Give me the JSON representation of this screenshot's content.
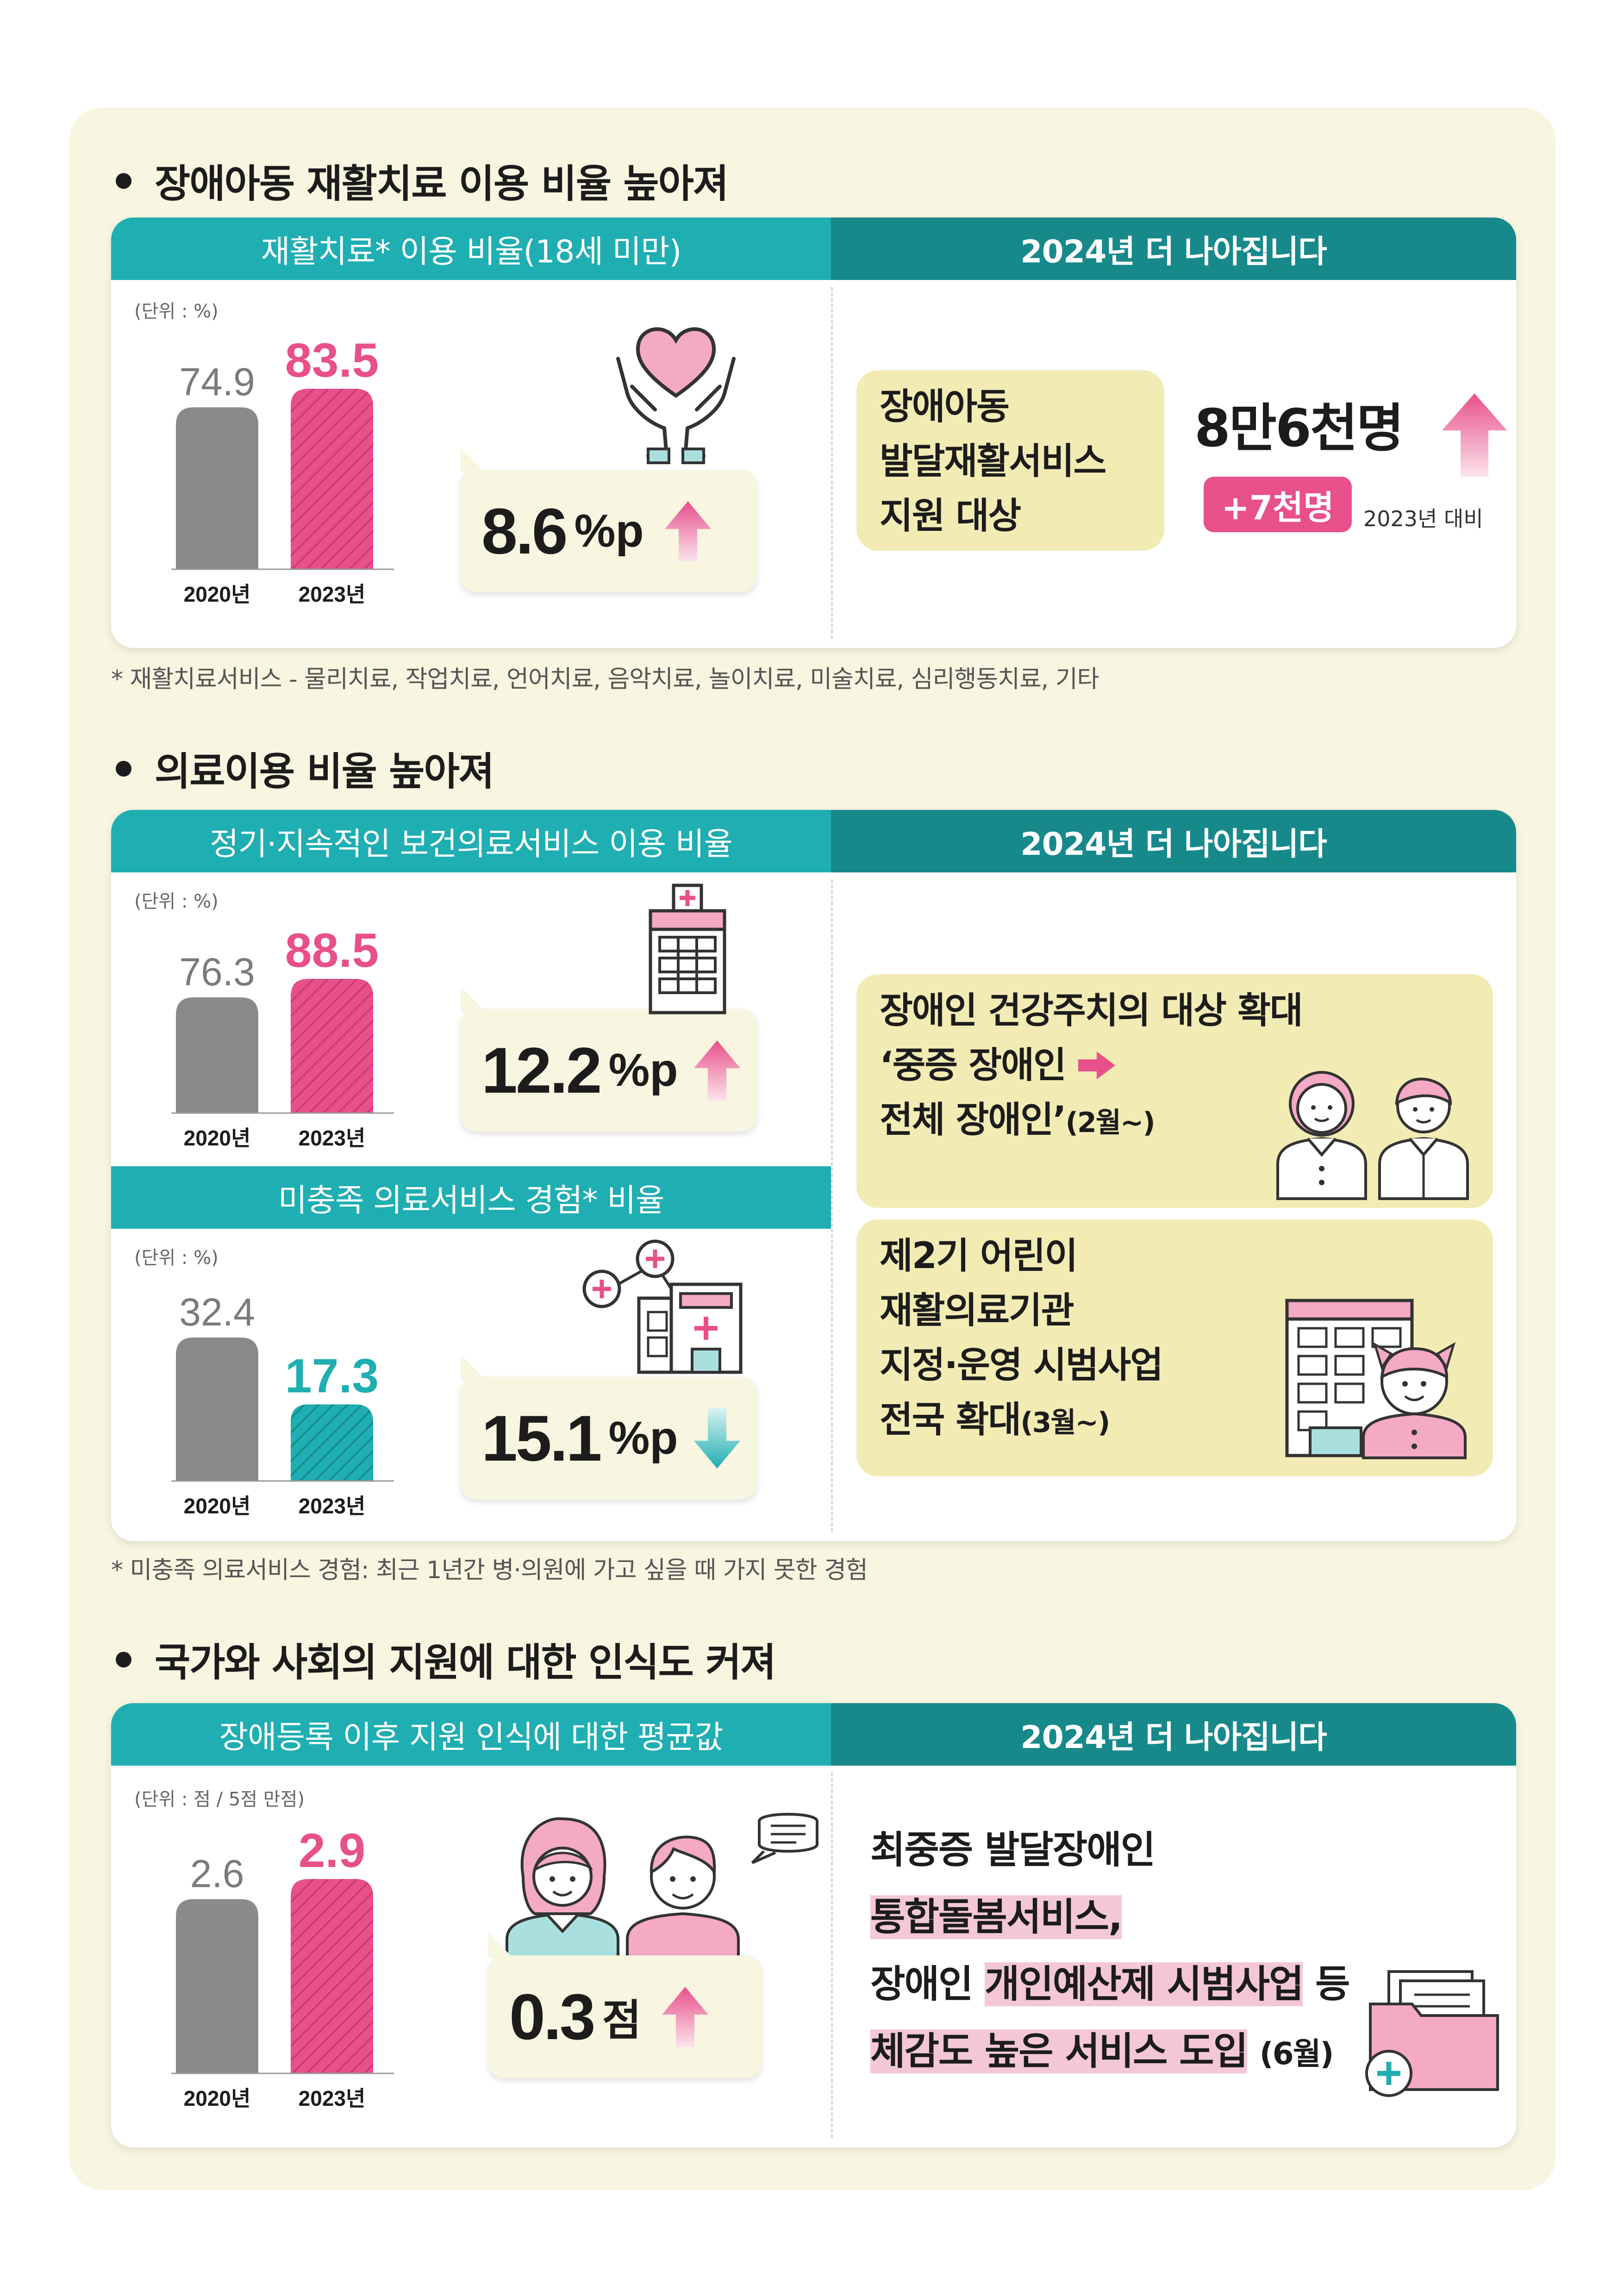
{
  "sections": [
    {
      "title": "장애아동 재활치료 이용 비율 높아져",
      "left_header": "재활치료* 이용 비율(18세 미만)",
      "right_header": "2024년 더 나아집니다",
      "unit": "(단위 : %)",
      "change_value": "8.6",
      "change_unit": "%p",
      "right_box_text": [
        "장애아동",
        "발달재활서비스",
        "지원 대상"
      ],
      "big_stat": "8만6천명",
      "badge": "+7천명",
      "compare_note": "2023년 대비",
      "footnote": "* 재활치료서비스 - 물리치료, 작업치료, 언어치료, 음악치료, 놀이치료, 미술치료, 심리행동치료, 기타"
    },
    {
      "title": "의료이용 비율 높아져",
      "left_header": "정기·지속적인 보건의료서비스 이용 비율",
      "right_header": "2024년 더 나아집니다",
      "unit": "(단위 : %)",
      "change_value": "12.2",
      "change_unit": "%p",
      "sub_header": "미충족 의료서비스 경험* 비율",
      "sub_unit": "(단위 : %)",
      "sub_change_value": "15.1",
      "sub_change_unit": "%p",
      "box1_lines": [
        "장애인 건강주치의 대상 확대",
        "‘중증 장애인",
        "전체 장애인’",
        "(2월~)"
      ],
      "box2_lines": [
        "제2기 어린이",
        "재활의료기관",
        "지정·운영 시범사업",
        "전국 확대",
        "(3월~)"
      ],
      "footnote": "* 미충족 의료서비스 경험: 최근 1년간 병·의원에 가고 싶을 때 가지 못한 경험"
    },
    {
      "title": "국가와 사회의 지원에 대한 인식도 커져",
      "left_header": "장애등록 이후 지원 인식에 대한  평균값",
      "right_header": "2024년 더 나아집니다",
      "unit": "(단위 : 점 / 5점 만점)",
      "change_value": "0.3",
      "change_unit": "점",
      "right_lines": [
        "최중증 발달장애인",
        "통합돌봄서비스,",
        "장애인",
        "개인예산제 시범사업",
        "등",
        "체감도 높은 서비스 도입",
        "(6월)"
      ]
    }
  ],
  "chart_data": [
    {
      "type": "bar",
      "title": "재활치료* 이용 비율(18세 미만)",
      "categories": [
        "2020년",
        "2023년"
      ],
      "values": [
        74.9,
        83.5
      ],
      "ylabel": "(단위 : %)",
      "ylim": [
        0,
        100
      ]
    },
    {
      "type": "bar",
      "title": "정기·지속적인 보건의료서비스 이용 비율",
      "categories": [
        "2020년",
        "2023년"
      ],
      "values": [
        76.3,
        88.5
      ],
      "ylabel": "(단위 : %)",
      "ylim": [
        0,
        100
      ]
    },
    {
      "type": "bar",
      "title": "미충족 의료서비스 경험* 비율",
      "categories": [
        "2020년",
        "2023년"
      ],
      "values": [
        32.4,
        17.3
      ],
      "ylabel": "(단위 : %)",
      "ylim": [
        0,
        40
      ]
    },
    {
      "type": "bar",
      "title": "장애등록 이후 지원 인식에 대한  평균값",
      "categories": [
        "2020년",
        "2023년"
      ],
      "values": [
        2.6,
        2.9
      ],
      "ylabel": "(단위 : 점 / 5점 만점)",
      "ylim": [
        0,
        3.2
      ]
    }
  ],
  "colors": {
    "gray_bar": "#8a8a8a",
    "pink": "#e8508a",
    "teal": "#1faeb2",
    "header_left": "#1faeb2",
    "header_right": "#17898b",
    "panel": "#f8f5e0",
    "box": "#f2ebb4"
  },
  "icons": [
    "heart-hands-icon",
    "hospital-icon",
    "clinic-icon",
    "doctor-pair-icon",
    "rehab-building-child-icon",
    "elderly-pair-icon",
    "folder-plus-icon",
    "arrow-up-icon",
    "arrow-down-icon"
  ]
}
